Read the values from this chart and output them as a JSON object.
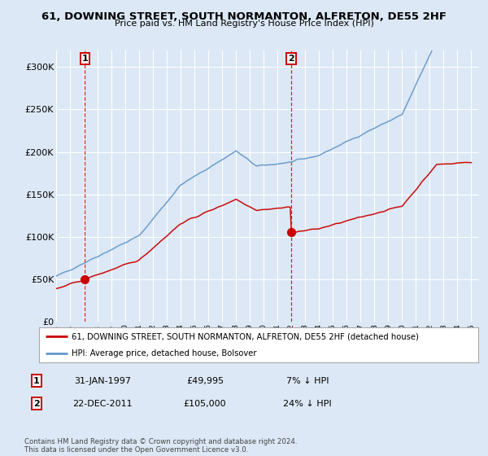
{
  "title": "61, DOWNING STREET, SOUTH NORMANTON, ALFRETON, DE55 2HF",
  "subtitle": "Price paid vs. HM Land Registry's House Price Index (HPI)",
  "background_color": "#dce8f5",
  "plot_bg_color": "#dce8f5",
  "legend_line1": "61, DOWNING STREET, SOUTH NORMANTON, ALFRETON, DE55 2HF (detached house)",
  "legend_line2": "HPI: Average price, detached house, Bolsover",
  "transaction1_date": 1997.08,
  "transaction1_price": 49995,
  "transaction1_label": "1",
  "transaction2_date": 2011.98,
  "transaction2_price": 105000,
  "transaction2_label": "2",
  "table_row1": [
    "1",
    "31-JAN-1997",
    "£49,995",
    "7% ↓ HPI"
  ],
  "table_row2": [
    "2",
    "22-DEC-2011",
    "£105,000",
    "24% ↓ HPI"
  ],
  "footnote": "Contains HM Land Registry data © Crown copyright and database right 2024.\nThis data is licensed under the Open Government Licence v3.0.",
  "red_line_color": "#cc0000",
  "blue_line_color": "#6699cc",
  "grid_color": "#ffffff",
  "marker_color": "#cc0000",
  "xlim_start": 1995.0,
  "xlim_end": 2025.5,
  "ylim": [
    0,
    320000
  ],
  "yticks": [
    0,
    50000,
    100000,
    150000,
    200000,
    250000,
    300000
  ],
  "ytick_labels": [
    "£0",
    "£50K",
    "£100K",
    "£150K",
    "£200K",
    "£250K",
    "£300K"
  ]
}
